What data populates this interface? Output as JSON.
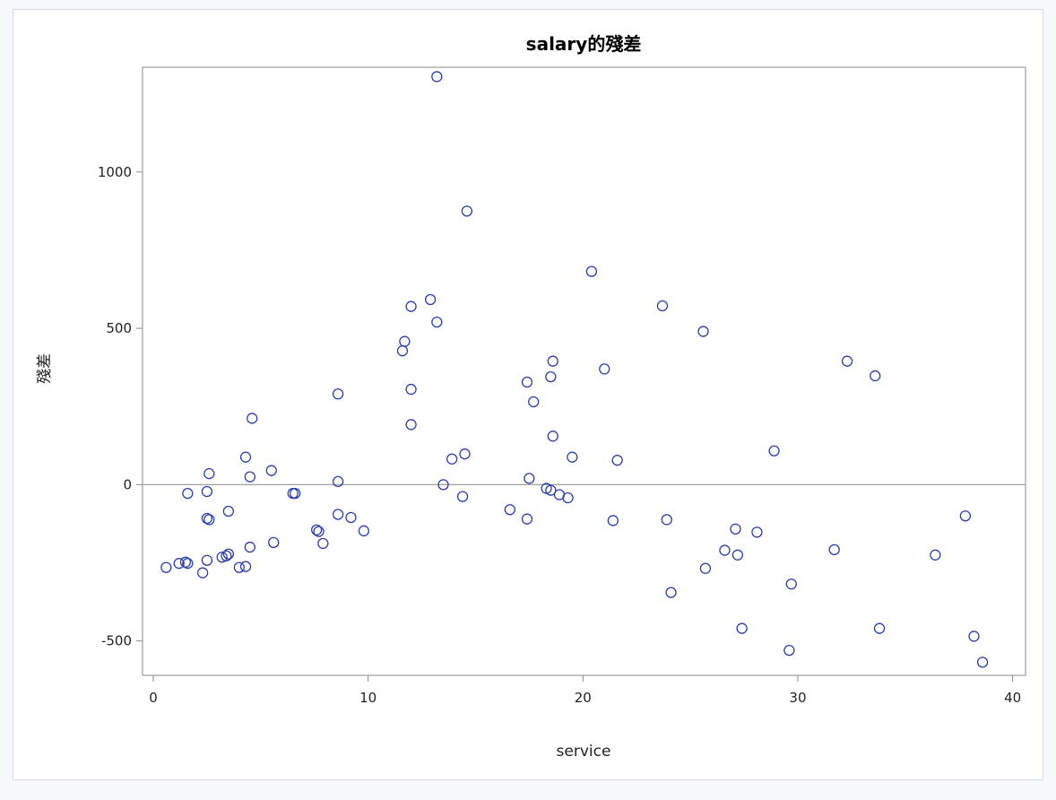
{
  "chart_data": {
    "type": "scatter",
    "title": "salary的殘差",
    "xlabel": "service",
    "ylabel": "殘差",
    "xlim": [
      -0.5,
      40.6
    ],
    "ylim": [
      -610,
      1335
    ],
    "xticks": [
      0,
      10,
      20,
      30,
      40
    ],
    "yticks": [
      -500,
      0,
      500,
      1000
    ],
    "reference_line_y": 0,
    "grid": false,
    "marker_color": "#2a3fa8",
    "points": [
      {
        "x": 0.6,
        "y": -265
      },
      {
        "x": 1.2,
        "y": -252
      },
      {
        "x": 1.5,
        "y": -248
      },
      {
        "x": 1.6,
        "y": -252
      },
      {
        "x": 1.6,
        "y": -28
      },
      {
        "x": 2.3,
        "y": -282
      },
      {
        "x": 2.5,
        "y": -242
      },
      {
        "x": 2.5,
        "y": -22
      },
      {
        "x": 2.5,
        "y": -108
      },
      {
        "x": 2.6,
        "y": -112
      },
      {
        "x": 2.6,
        "y": 35
      },
      {
        "x": 3.2,
        "y": -232
      },
      {
        "x": 3.4,
        "y": -228
      },
      {
        "x": 3.5,
        "y": -222
      },
      {
        "x": 3.5,
        "y": -85
      },
      {
        "x": 4.0,
        "y": -265
      },
      {
        "x": 4.3,
        "y": -262
      },
      {
        "x": 4.3,
        "y": 88
      },
      {
        "x": 4.5,
        "y": 25
      },
      {
        "x": 4.5,
        "y": -200
      },
      {
        "x": 4.6,
        "y": 212
      },
      {
        "x": 5.5,
        "y": 45
      },
      {
        "x": 5.6,
        "y": -185
      },
      {
        "x": 6.5,
        "y": -28
      },
      {
        "x": 6.6,
        "y": -28
      },
      {
        "x": 7.6,
        "y": -145
      },
      {
        "x": 7.7,
        "y": -150
      },
      {
        "x": 7.9,
        "y": -188
      },
      {
        "x": 8.6,
        "y": 10
      },
      {
        "x": 8.6,
        "y": -95
      },
      {
        "x": 8.6,
        "y": 290
      },
      {
        "x": 9.2,
        "y": -105
      },
      {
        "x": 9.8,
        "y": -148
      },
      {
        "x": 11.6,
        "y": 428
      },
      {
        "x": 11.7,
        "y": 458
      },
      {
        "x": 12.0,
        "y": 570
      },
      {
        "x": 12.0,
        "y": 305
      },
      {
        "x": 12.0,
        "y": 192
      },
      {
        "x": 12.9,
        "y": 592
      },
      {
        "x": 13.2,
        "y": 520
      },
      {
        "x": 13.2,
        "y": 1305
      },
      {
        "x": 13.5,
        "y": 0
      },
      {
        "x": 13.9,
        "y": 82
      },
      {
        "x": 14.4,
        "y": -38
      },
      {
        "x": 14.5,
        "y": 98
      },
      {
        "x": 14.6,
        "y": 875
      },
      {
        "x": 16.6,
        "y": -80
      },
      {
        "x": 17.4,
        "y": -110
      },
      {
        "x": 17.4,
        "y": 328
      },
      {
        "x": 17.5,
        "y": 20
      },
      {
        "x": 17.7,
        "y": 265
      },
      {
        "x": 18.3,
        "y": -12
      },
      {
        "x": 18.5,
        "y": -18
      },
      {
        "x": 18.5,
        "y": 345
      },
      {
        "x": 18.6,
        "y": 395
      },
      {
        "x": 18.6,
        "y": 155
      },
      {
        "x": 18.9,
        "y": -32
      },
      {
        "x": 19.3,
        "y": -42
      },
      {
        "x": 19.5,
        "y": 88
      },
      {
        "x": 20.4,
        "y": 682
      },
      {
        "x": 21.0,
        "y": 370
      },
      {
        "x": 21.4,
        "y": -115
      },
      {
        "x": 21.6,
        "y": 78
      },
      {
        "x": 23.7,
        "y": 572
      },
      {
        "x": 23.9,
        "y": -112
      },
      {
        "x": 24.1,
        "y": -345
      },
      {
        "x": 25.6,
        "y": 490
      },
      {
        "x": 25.7,
        "y": -268
      },
      {
        "x": 26.6,
        "y": -210
      },
      {
        "x": 27.1,
        "y": -142
      },
      {
        "x": 27.2,
        "y": -225
      },
      {
        "x": 27.4,
        "y": -460
      },
      {
        "x": 28.1,
        "y": -152
      },
      {
        "x": 28.9,
        "y": 108
      },
      {
        "x": 29.6,
        "y": -530
      },
      {
        "x": 29.7,
        "y": -318
      },
      {
        "x": 31.7,
        "y": -208
      },
      {
        "x": 32.3,
        "y": 395
      },
      {
        "x": 33.6,
        "y": 348
      },
      {
        "x": 33.8,
        "y": -460
      },
      {
        "x": 36.4,
        "y": -225
      },
      {
        "x": 37.8,
        "y": -100
      },
      {
        "x": 38.2,
        "y": -485
      },
      {
        "x": 38.6,
        "y": -568
      }
    ]
  }
}
